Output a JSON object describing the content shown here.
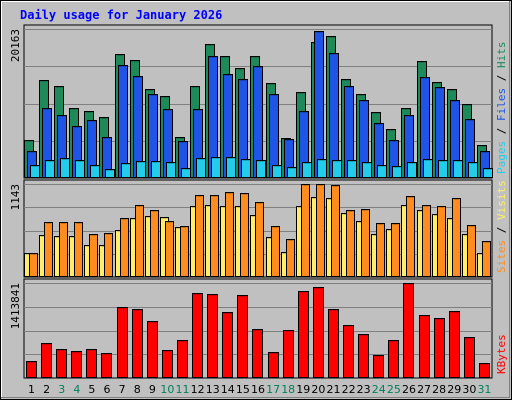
{
  "chart_data": {
    "type": "bar",
    "title": "Daily usage for January 2026",
    "categories": [
      "1",
      "2",
      "3",
      "4",
      "5",
      "6",
      "7",
      "8",
      "9",
      "10",
      "11",
      "12",
      "13",
      "14",
      "15",
      "16",
      "17",
      "18",
      "19",
      "20",
      "21",
      "22",
      "23",
      "24",
      "25",
      "26",
      "27",
      "28",
      "29",
      "30",
      "31"
    ],
    "weekend_days": [
      "3",
      "4",
      "10",
      "11",
      "17",
      "18",
      "24",
      "25",
      "31"
    ],
    "panels": [
      {
        "name": "hits",
        "axis_max_label": "20163",
        "ymax": 20163,
        "series": [
          {
            "name": "Hits",
            "color": "#1e8a5a",
            "values": [
              5100,
              13300,
              12500,
              9500,
              9000,
              8300,
              16800,
              16000,
              12100,
              11100,
              5600,
              12500,
              18100,
              16500,
              14900,
              16500,
              12900,
              5400,
              11700,
              18400,
              19200,
              13400,
              11300,
              8900,
              6600,
              9500,
              15800,
              13000,
              12000,
              10000,
              4400
            ]
          },
          {
            "name": "Files",
            "color": "#1e55e6",
            "values": [
              3600,
              9500,
              8500,
              7000,
              7800,
              5600,
              15300,
              13800,
              11300,
              9300,
              5000,
              9300,
              16500,
              14100,
              13400,
              15100,
              11300,
              5300,
              9100,
              19900,
              16900,
              12500,
              10500,
              7500,
              5100,
              8500,
              13700,
              12300,
              10500,
              8000,
              3600
            ]
          },
          {
            "name": "Pages",
            "color": "#22ccea",
            "values": [
              1800,
              2500,
              2700,
              2400,
              1800,
              1200,
              2000,
              2300,
              2300,
              2200,
              1300,
              2700,
              2800,
              2800,
              2600,
              2400,
              1800,
              1500,
              2200,
              2600,
              2500,
              2400,
              2200,
              1800,
              1600,
              2200,
              2600,
              2400,
              2400,
              2200,
              1400
            ]
          }
        ],
        "right_labels": [
          {
            "text": "Pages",
            "color": "#22ccea"
          },
          {
            "text": " / ",
            "color": "#000000"
          },
          {
            "text": "Files",
            "color": "#1e55e6"
          },
          {
            "text": " / ",
            "color": "#000000"
          },
          {
            "text": "Hits",
            "color": "#1e8a5a"
          }
        ]
      },
      {
        "name": "visits",
        "axis_max_label": "1143",
        "ymax": 1143,
        "series": [
          {
            "name": "Visits",
            "color": "#ffee66",
            "values": [
              300,
              520,
              510,
              500,
              395,
              395,
              580,
              720,
              755,
              735,
              615,
              870,
              885,
              870,
              875,
              760,
              490,
              310,
              870,
              980,
              975,
              790,
              690,
              525,
              590,
              880,
              820,
              780,
              730,
              525,
              290
            ]
          },
          {
            "name": "Sites",
            "color": "#ff8c1e",
            "values": [
              290,
              680,
              680,
              670,
              530,
              540,
              730,
              890,
              820,
              690,
              630,
              1010,
              1005,
              1040,
              1035,
              920,
              625,
              470,
              1140,
              1140,
              1130,
              820,
              840,
              660,
              660,
              1000,
              890,
              870,
              970,
              640,
              440
            ]
          }
        ],
        "right_labels": [
          {
            "text": "Sites",
            "color": "#ff8c1e"
          },
          {
            "text": " / ",
            "color": "#000000"
          },
          {
            "text": "Visits",
            "color": "#ffee66"
          }
        ]
      },
      {
        "name": "kbytes",
        "axis_max_label": "1413841",
        "ymax": 1413841,
        "series": [
          {
            "name": "KBytes",
            "color": "#ff0000",
            "values": [
              250000,
              520000,
              430000,
              400000,
              430000,
              370000,
              1060000,
              1030000,
              850000,
              410000,
              560000,
              1270000,
              1250000,
              980000,
              1230000,
              730000,
              390000,
              710000,
              1290000,
              1360000,
              1030000,
              790000,
              660000,
              340000,
              570000,
              1413841,
              940000,
              900000,
              1000000,
              610000,
              220000
            ]
          }
        ],
        "right_labels": [
          {
            "text": "KBytes",
            "color": "#ff0000"
          }
        ]
      }
    ]
  }
}
